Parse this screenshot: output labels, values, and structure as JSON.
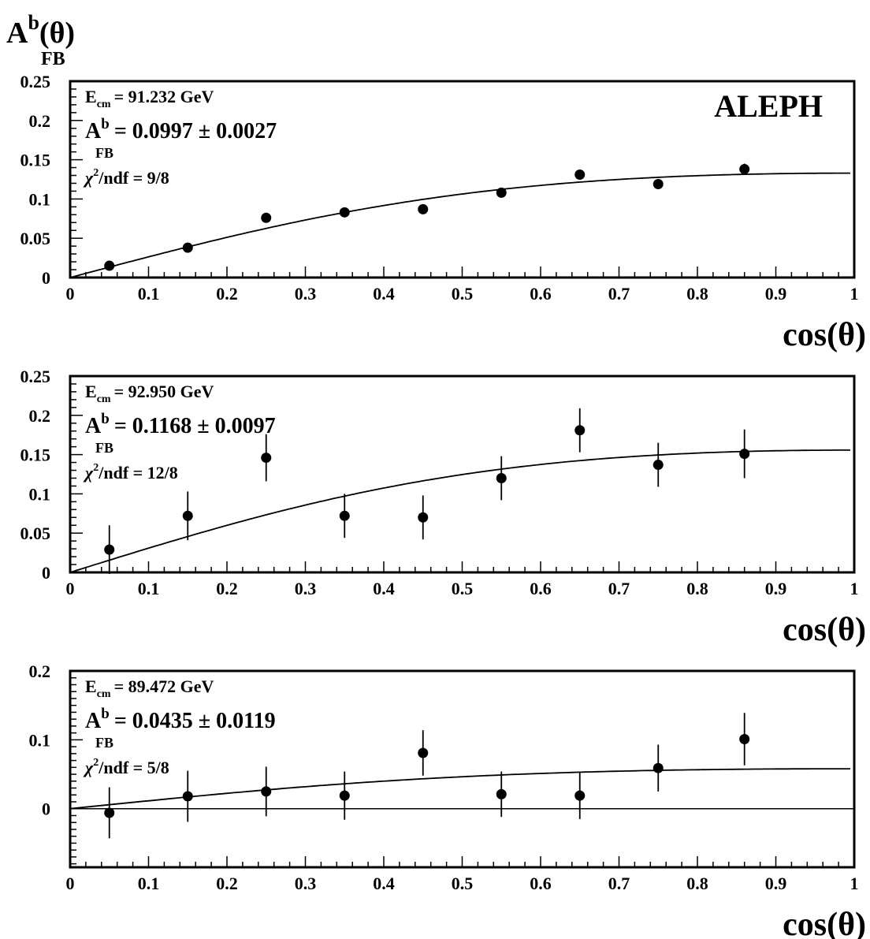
{
  "figure": {
    "ylabel": {
      "main": "A",
      "sup": "b",
      "paren": "(θ)",
      "sub": "FB"
    },
    "xlabel": "cos(θ)",
    "experiment": "ALEPH"
  },
  "chart_data": [
    {
      "type": "scatter",
      "xlim": [
        0,
        1
      ],
      "ylim": [
        0,
        0.25
      ],
      "x_ticks": [
        "0",
        "0.1",
        "0.2",
        "0.3",
        "0.4",
        "0.5",
        "0.6",
        "0.7",
        "0.8",
        "0.9",
        "1"
      ],
      "y_ticks": [
        {
          "v": 0,
          "label": "0"
        },
        {
          "v": 0.05,
          "label": "0.05"
        },
        {
          "v": 0.1,
          "label": "0.1"
        },
        {
          "v": 0.15,
          "label": "0.15"
        },
        {
          "v": 0.2,
          "label": "0.2"
        },
        {
          "v": 0.25,
          "label": "0.25"
        }
      ],
      "xlabel": "cos(θ)",
      "info": {
        "ecm": "= 91.232 GeV",
        "afb": "= 0.0997 ± 0.0027",
        "chi2": "/ndf = 9/8"
      },
      "experiment": "ALEPH",
      "zero_line": false,
      "points": [
        {
          "x": 0.05,
          "y": 0.015,
          "err": 0.004
        },
        {
          "x": 0.15,
          "y": 0.038,
          "err": 0.004
        },
        {
          "x": 0.25,
          "y": 0.076,
          "err": 0.005
        },
        {
          "x": 0.35,
          "y": 0.083,
          "err": 0.005
        },
        {
          "x": 0.45,
          "y": 0.087,
          "err": 0.005
        },
        {
          "x": 0.55,
          "y": 0.108,
          "err": 0.005
        },
        {
          "x": 0.65,
          "y": 0.131,
          "err": 0.005
        },
        {
          "x": 0.75,
          "y": 0.119,
          "err": 0.006
        },
        {
          "x": 0.86,
          "y": 0.138,
          "err": 0.007
        }
      ],
      "fit": {
        "afb": 0.0997,
        "x_max": 0.995
      }
    },
    {
      "type": "scatter",
      "xlim": [
        0,
        1
      ],
      "ylim": [
        0,
        0.25
      ],
      "x_ticks": [
        "0",
        "0.1",
        "0.2",
        "0.3",
        "0.4",
        "0.5",
        "0.6",
        "0.7",
        "0.8",
        "0.9",
        "1"
      ],
      "y_ticks": [
        {
          "v": 0,
          "label": "0"
        },
        {
          "v": 0.05,
          "label": "0.05"
        },
        {
          "v": 0.1,
          "label": "0.1"
        },
        {
          "v": 0.15,
          "label": "0.15"
        },
        {
          "v": 0.2,
          "label": "0.2"
        },
        {
          "v": 0.25,
          "label": "0.25"
        }
      ],
      "xlabel": "cos(θ)",
      "info": {
        "ecm": "= 92.950 GeV",
        "afb": "= 0.1168 ± 0.0097",
        "chi2": "/ndf = 12/8"
      },
      "zero_line": false,
      "points": [
        {
          "x": 0.05,
          "y": 0.029,
          "err": 0.031
        },
        {
          "x": 0.15,
          "y": 0.072,
          "err": 0.031
        },
        {
          "x": 0.25,
          "y": 0.146,
          "err": 0.03
        },
        {
          "x": 0.35,
          "y": 0.072,
          "err": 0.028
        },
        {
          "x": 0.45,
          "y": 0.07,
          "err": 0.028
        },
        {
          "x": 0.55,
          "y": 0.12,
          "err": 0.028
        },
        {
          "x": 0.65,
          "y": 0.181,
          "err": 0.028
        },
        {
          "x": 0.75,
          "y": 0.137,
          "err": 0.028
        },
        {
          "x": 0.86,
          "y": 0.151,
          "err": 0.031
        }
      ],
      "fit": {
        "afb": 0.1168,
        "x_max": 0.995
      }
    },
    {
      "type": "scatter",
      "xlim": [
        0,
        1
      ],
      "ylim": [
        -0.085,
        0.2
      ],
      "x_ticks": [
        "0",
        "0.1",
        "0.2",
        "0.3",
        "0.4",
        "0.5",
        "0.6",
        "0.7",
        "0.8",
        "0.9",
        "1"
      ],
      "y_ticks": [
        {
          "v": 0,
          "label": "0"
        },
        {
          "v": 0.1,
          "label": "0.1"
        },
        {
          "v": 0.2,
          "label": "0.2"
        }
      ],
      "xlabel": "cos(θ)",
      "info": {
        "ecm": "= 89.472 GeV",
        "afb": "= 0.0435 ± 0.0119",
        "chi2": "/ndf = 5/8"
      },
      "zero_line": true,
      "points": [
        {
          "x": 0.05,
          "y": -0.006,
          "err": 0.037
        },
        {
          "x": 0.15,
          "y": 0.018,
          "err": 0.037
        },
        {
          "x": 0.25,
          "y": 0.025,
          "err": 0.036
        },
        {
          "x": 0.35,
          "y": 0.019,
          "err": 0.035
        },
        {
          "x": 0.45,
          "y": 0.081,
          "err": 0.033
        },
        {
          "x": 0.55,
          "y": 0.021,
          "err": 0.033
        },
        {
          "x": 0.65,
          "y": 0.019,
          "err": 0.034
        },
        {
          "x": 0.75,
          "y": 0.059,
          "err": 0.034
        },
        {
          "x": 0.86,
          "y": 0.101,
          "err": 0.038
        }
      ],
      "fit": {
        "afb": 0.0435,
        "x_max": 0.995
      }
    }
  ]
}
